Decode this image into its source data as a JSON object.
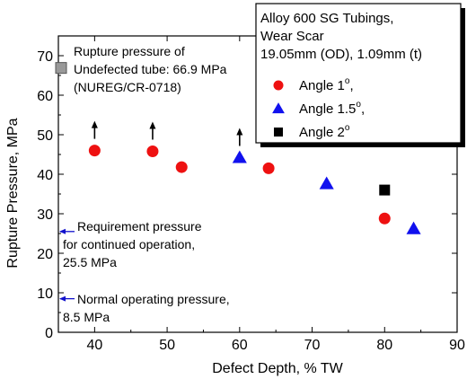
{
  "chart_data": {
    "type": "scatter",
    "xlabel": "Defect Depth, % TW",
    "ylabel": "Rupture Pressure, MPa",
    "xlim": [
      35,
      90
    ],
    "ylim": [
      0,
      75
    ],
    "xticks": [
      "40",
      "50",
      "60",
      "70",
      "80",
      "90"
    ],
    "yticks": [
      "0",
      "10",
      "20",
      "30",
      "40",
      "50",
      "60",
      "70"
    ],
    "legend": {
      "title_lines": [
        "Alloy 600 SG Tubings,",
        "Wear Scar",
        "19.05mm (OD), 1.09mm (t)"
      ],
      "placement": "top-right",
      "entries": [
        {
          "label": "Angle 1",
          "sup": "o",
          "suffix": ",",
          "marker": "circle",
          "color": "#ee1111"
        },
        {
          "label": "Angle 1.5",
          "sup": "o",
          "suffix": ",",
          "marker": "triangle",
          "color": "#1111ee"
        },
        {
          "label": "Angle 2",
          "sup": "o",
          "suffix": "",
          "marker": "square",
          "color": "#000000"
        }
      ]
    },
    "series": [
      {
        "marker": "circle",
        "color": "#ee1111",
        "x": [
          40,
          48,
          52,
          64,
          80
        ],
        "y": [
          46,
          45.8,
          41.8,
          41.5,
          28.8
        ]
      },
      {
        "marker": "triangle",
        "color": "#1111ee",
        "x": [
          60,
          72,
          84
        ],
        "y": [
          44.2,
          37.6,
          26.2
        ]
      },
      {
        "marker": "square",
        "color": "#000000",
        "x": [
          80
        ],
        "y": [
          36
        ]
      }
    ],
    "up_arrows_at": [
      {
        "x": 40,
        "y": 46
      },
      {
        "x": 48,
        "y": 45.8
      },
      {
        "x": 60,
        "y": 44.2
      }
    ],
    "reference_points": [
      {
        "y": 66.9,
        "marker": "gray-square",
        "color": "#999999",
        "lines": [
          "Rupture pressure of",
          "Undefected tube: 66.9 MPa",
          "(NUREG/CR-0718)"
        ]
      },
      {
        "y": 25.5,
        "marker": "arrow",
        "color": "#1111cc",
        "lines": [
          "Requirement pressure",
          "for continued operation,",
          "25.5 MPa"
        ]
      },
      {
        "y": 8.5,
        "marker": "arrow",
        "color": "#1111cc",
        "lines": [
          "Normal operating pressure,",
          "8.5 MPa"
        ]
      }
    ]
  }
}
